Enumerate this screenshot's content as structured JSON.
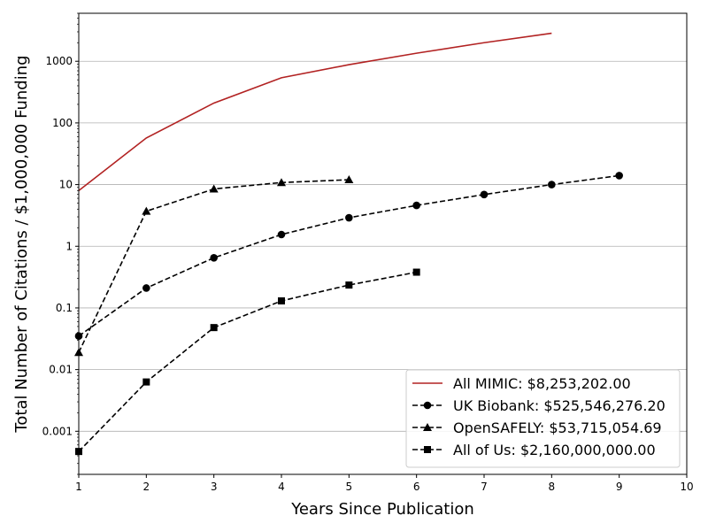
{
  "chart_data": {
    "type": "line",
    "xlabel": "Years Since Publication",
    "ylabel": "Total Number of Citations / $1,000,000 Funding",
    "xlim": [
      1,
      10
    ],
    "ylim_log": [
      0.0002,
      6000
    ],
    "yscale": "log",
    "grid": "horizontal",
    "legend_position": "bottom-right",
    "x_ticks": [
      1,
      2,
      3,
      4,
      5,
      6,
      7,
      8,
      9,
      10
    ],
    "x_tick_labels": [
      "1",
      "2",
      "3",
      "4",
      "5",
      "6",
      "7",
      "8",
      "9",
      "10"
    ],
    "y_ticks": [
      0.001,
      0.01,
      0.1,
      1,
      10,
      100,
      1000
    ],
    "y_tick_labels": [
      "0.001",
      "0.01",
      "0.1",
      "1",
      "10",
      "100",
      "1000"
    ],
    "series": [
      {
        "name": "All MIMIC: $8,253,202.00",
        "color": "#b22222",
        "style": "solid",
        "marker": "none",
        "x": [
          1,
          2,
          3,
          4,
          5,
          6,
          7,
          8
        ],
        "y": [
          8,
          57,
          210,
          540,
          880,
          1350,
          2000,
          2850
        ]
      },
      {
        "name": "UK Biobank: $525,546,276.20",
        "color": "#000000",
        "style": "dashed",
        "marker": "circle",
        "x": [
          1,
          2,
          3,
          4,
          5,
          6,
          7,
          8,
          9
        ],
        "y": [
          0.035,
          0.21,
          0.65,
          1.55,
          2.9,
          4.6,
          6.9,
          10,
          14
        ]
      },
      {
        "name": "OpenSAFELY: $53,715,054.69",
        "color": "#000000",
        "style": "dashed",
        "marker": "triangle",
        "x": [
          1,
          2,
          3,
          4,
          5
        ],
        "y": [
          0.019,
          3.7,
          8.5,
          10.8,
          12
        ]
      },
      {
        "name": "All of Us: $2,160,000,000.00",
        "color": "#000000",
        "style": "dashed",
        "marker": "square",
        "x": [
          1,
          2,
          3,
          4,
          5,
          6
        ],
        "y": [
          0.00047,
          0.0063,
          0.048,
          0.13,
          0.235,
          0.38
        ]
      }
    ]
  }
}
